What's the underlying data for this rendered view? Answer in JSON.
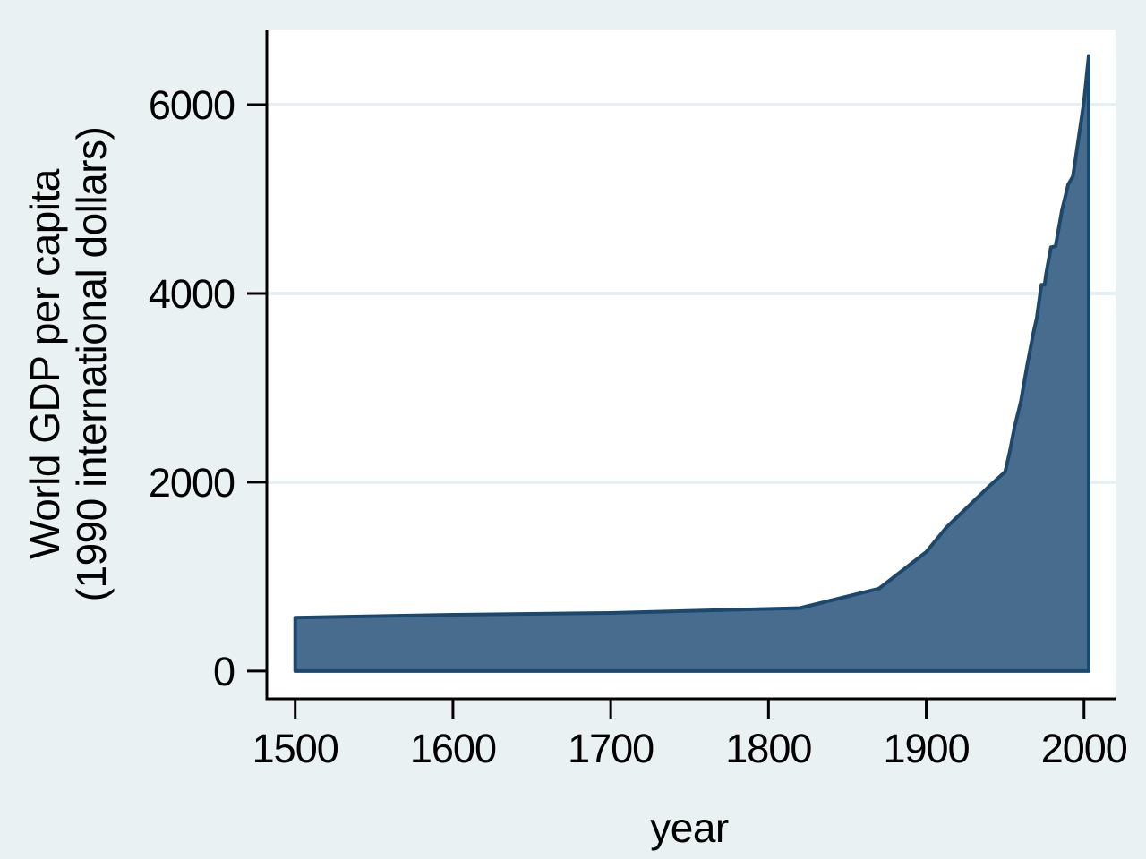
{
  "figure": {
    "background": "#EAF1F3",
    "plot_background": "#FFFFFF",
    "grid_color": "#E6EFF1",
    "axis_color": "#000000",
    "area_fill": "#476C8E",
    "area_stroke": "#1B486F"
  },
  "chart_data": {
    "type": "area",
    "title": "",
    "xlabel": "year",
    "ylabel_lines": [
      "World GDP per capita",
      "(1990 international dollars)"
    ],
    "x": [
      1500,
      1600,
      1700,
      1820,
      1870,
      1900,
      1913,
      1940,
      1950,
      1953,
      1956,
      1960,
      1964,
      1968,
      1970,
      1973,
      1975,
      1976,
      1979,
      1982,
      1986,
      1990,
      1993,
      1996,
      2000,
      2003
    ],
    "values": [
      566,
      596,
      615,
      667,
      873,
      1262,
      1526,
      1958,
      2111,
      2325,
      2585,
      2858,
      3240,
      3590,
      3736,
      4091,
      4091,
      4212,
      4490,
      4500,
      4880,
      5154,
      5240,
      5580,
      6038,
      6516
    ],
    "baseline": 0,
    "x_ticks": [
      1500,
      1600,
      1700,
      1800,
      1900,
      2000
    ],
    "y_ticks": [
      0,
      2000,
      4000,
      6000
    ],
    "xlim": [
      1482,
      2020
    ],
    "ylim": [
      -295,
      6796
    ],
    "grid": "horizontal",
    "legend": "none"
  }
}
